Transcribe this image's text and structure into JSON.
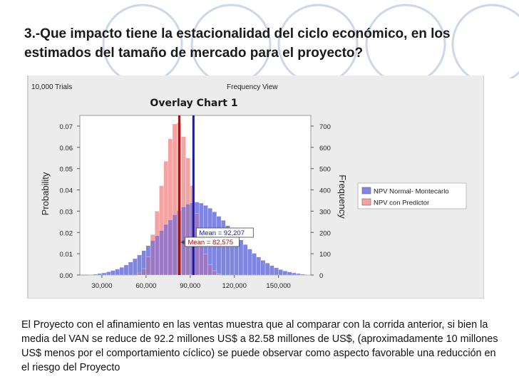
{
  "slide": {
    "title_line1": "3.-Que impacto tiene la estacionalidad del ciclo económico,  en los",
    "title_line2": "estimados del tamaño de mercado para el proyecto?",
    "body_text": "El Proyecto con el afinamiento en las ventas muestra que al comparar con la corrida anterior, si bien la media del VAN se reduce de 92.2 millones US$ a 82.58 millones de US$, (aproximadamente 10 millones US$ menos por el comportamiento cíclico) se puede observar como aspecto favorable una reducción en el riesgo del Proyecto"
  },
  "chart_header": {
    "trials": "10,000 Trials",
    "view": "Frequency View"
  },
  "colors": {
    "series_a": "#7f86e2",
    "series_b": "#f4a3a3",
    "overlap": "#9a78c2",
    "mean_a_line": "#1a1a9c",
    "mean_b_line": "#a01414"
  },
  "chart_data": {
    "type": "bar",
    "title": "Overlay Chart 1",
    "xlabel": "",
    "ylabel": "Probability",
    "y2label": "Frequency",
    "xlim": [
      15000,
      172000
    ],
    "ylim": [
      0,
      0.075
    ],
    "y2lim": [
      0,
      750
    ],
    "x_ticks": [
      30000,
      60000,
      90000,
      120000,
      150000
    ],
    "x_tick_labels": [
      "30,000",
      "60,000",
      "90,000",
      "120,000",
      "150,000"
    ],
    "y_ticks": [
      0.0,
      0.01,
      0.02,
      0.03,
      0.04,
      0.05,
      0.06,
      0.07
    ],
    "y_tick_labels": [
      "0.00",
      "0.01",
      "0.02",
      "0.03",
      "0.04",
      "0.05",
      "0.06",
      "0.07"
    ],
    "y2_ticks": [
      0,
      100,
      200,
      300,
      400,
      500,
      600,
      700
    ],
    "y2_tick_labels": [
      "0",
      "100",
      "200",
      "300",
      "400",
      "500",
      "600",
      "700"
    ],
    "legend_position": "right",
    "grid": false,
    "series": [
      {
        "name": "NPV Normal- Montecarlo",
        "mean": 92207,
        "mean_label": "Mean =  92,207",
        "bin_width": 3000,
        "x": [
          22500,
          25500,
          28500,
          31500,
          34500,
          37500,
          40500,
          43500,
          46500,
          49500,
          52500,
          55500,
          58500,
          61500,
          64500,
          67500,
          70500,
          73500,
          76500,
          79500,
          82500,
          85500,
          88500,
          91500,
          94500,
          97500,
          100500,
          103500,
          106500,
          109500,
          112500,
          115500,
          118500,
          121500,
          124500,
          127500,
          130500,
          133500,
          136500,
          139500,
          142500,
          145500,
          148500,
          151500,
          154500,
          157500,
          160500,
          163500,
          166500,
          169500
        ],
        "values": [
          0.0002,
          0.0004,
          0.0007,
          0.001,
          0.0015,
          0.0021,
          0.0027,
          0.0036,
          0.0047,
          0.0061,
          0.0077,
          0.0094,
          0.0115,
          0.0138,
          0.0163,
          0.0186,
          0.021,
          0.0238,
          0.026,
          0.0284,
          0.0304,
          0.0321,
          0.0334,
          0.034,
          0.0343,
          0.0338,
          0.0327,
          0.0314,
          0.0297,
          0.0276,
          0.0257,
          0.0232,
          0.0212,
          0.0189,
          0.0165,
          0.0143,
          0.0122,
          0.0102,
          0.0085,
          0.0069,
          0.0056,
          0.0044,
          0.0034,
          0.0026,
          0.0019,
          0.0014,
          0.001,
          0.0007,
          0.0004,
          0.0002
        ]
      },
      {
        "name": "NPV con Predictor",
        "mean": 82575,
        "mean_label": "Mean =  82,575",
        "bin_width": 3000,
        "x": [
          55500,
          58500,
          61500,
          64500,
          67500,
          70500,
          73500,
          76500,
          79500,
          82500,
          85500,
          88500,
          91500,
          94500,
          97500,
          100500,
          103500,
          106500,
          109500
        ],
        "values": [
          0.001,
          0.003,
          0.0085,
          0.019,
          0.03,
          0.042,
          0.0535,
          0.064,
          0.071,
          0.0715,
          0.065,
          0.055,
          0.042,
          0.029,
          0.0185,
          0.01,
          0.005,
          0.002,
          0.0005
        ]
      }
    ]
  }
}
